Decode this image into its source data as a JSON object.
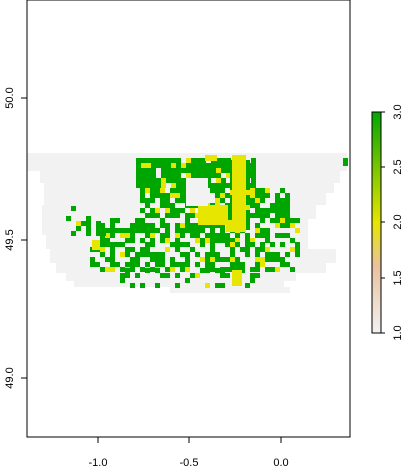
{
  "chart_data": {
    "type": "heatmap",
    "x_ticks": [
      "-1.0",
      "-0.5",
      "0.0"
    ],
    "x_tick_values": [
      -1.0,
      -0.5,
      0.0
    ],
    "y_ticks": [
      "49.0",
      "49.5",
      "50.0"
    ],
    "y_tick_values": [
      49.0,
      49.5,
      50.0
    ],
    "xlim": [
      -1.36,
      0.38
    ],
    "ylim": [
      48.77,
      50.32
    ],
    "legend": {
      "ticks": [
        "1.0",
        "1.5",
        "2.0",
        "2.5",
        "3.0"
      ],
      "tick_values": [
        1.0,
        1.5,
        2.0,
        2.5,
        3.0
      ],
      "range": [
        1.0,
        3.0
      ],
      "placement": "right",
      "colors": [
        "#f2f2f2",
        "#e8c1a0",
        "#e6e600",
        "#00a600"
      ]
    },
    "colors": {
      "background_value": "#f2f2f2",
      "mid_value": "#e6e600",
      "high_value": "#00a600"
    }
  }
}
